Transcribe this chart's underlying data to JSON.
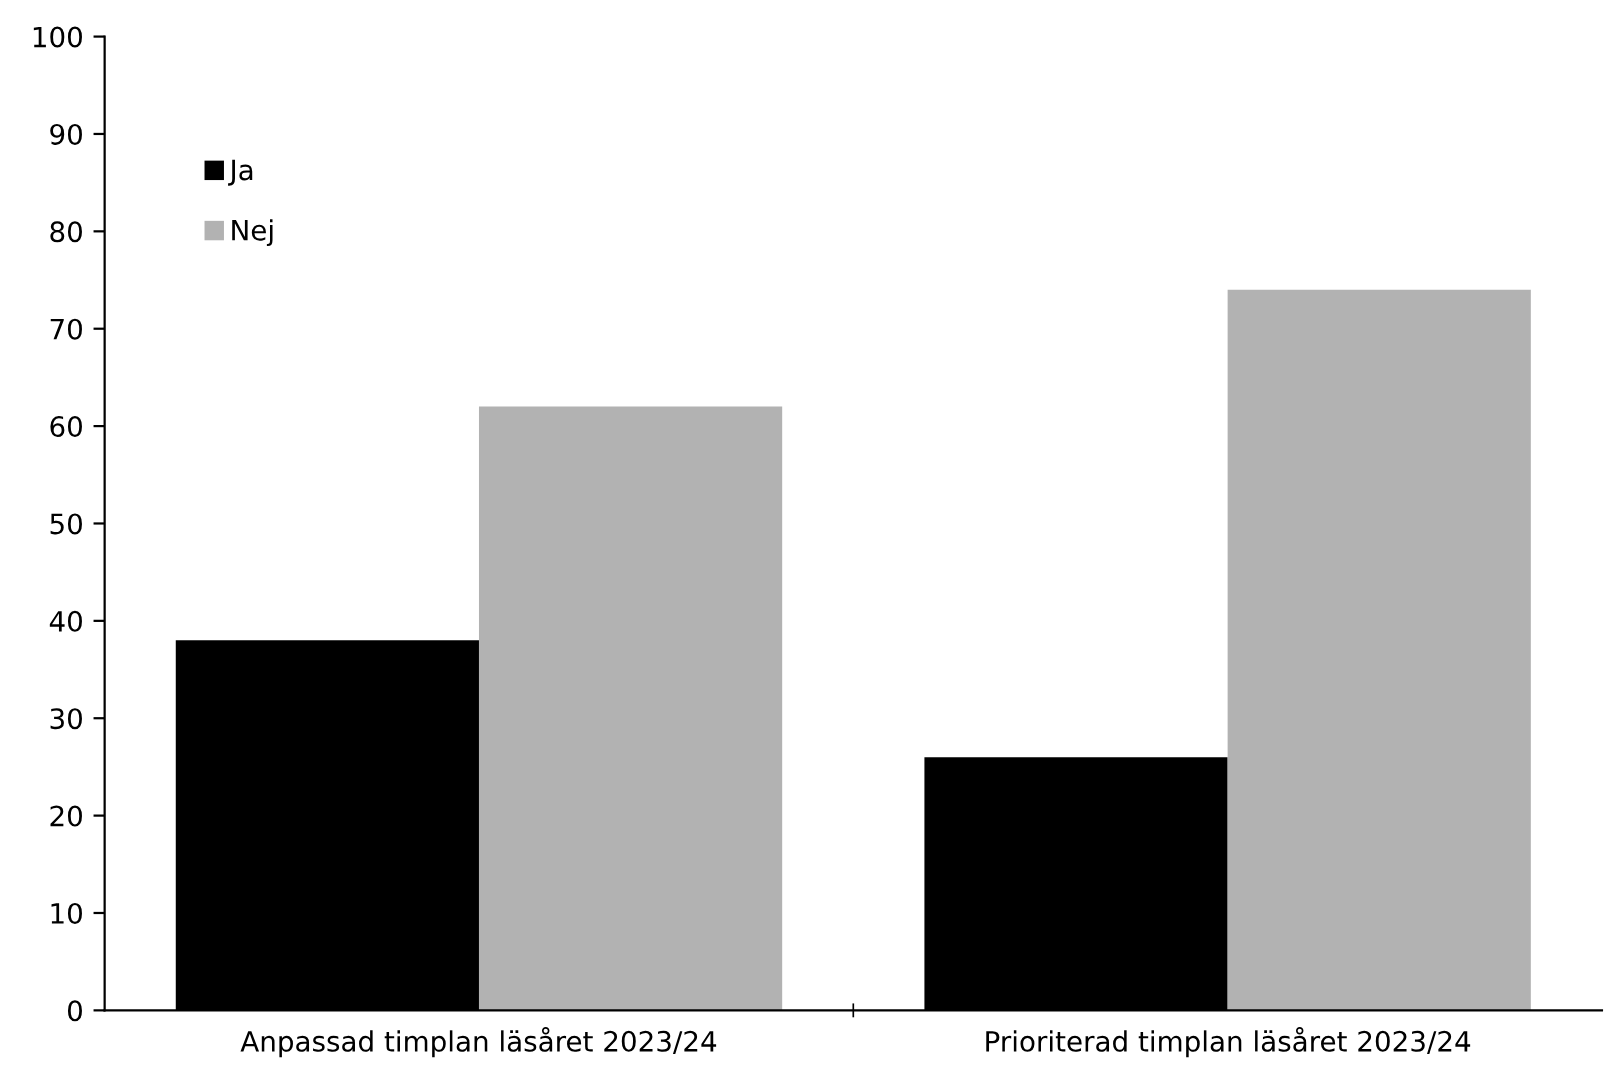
{
  "chart_data": {
    "type": "bar",
    "categories": [
      "Anpassad timplan läsåret 2023/24",
      "Prioriterad timplan läsåret 2023/24"
    ],
    "series": [
      {
        "name": "Ja",
        "color": "#000000",
        "values": [
          38,
          26
        ]
      },
      {
        "name": "Nej",
        "color": "#b2b2b2",
        "values": [
          62,
          74
        ]
      }
    ],
    "ylim": [
      0,
      100
    ],
    "yticks": [
      0,
      10,
      20,
      30,
      40,
      50,
      60,
      70,
      80,
      90,
      100
    ],
    "grid": false,
    "legend": "top left"
  }
}
